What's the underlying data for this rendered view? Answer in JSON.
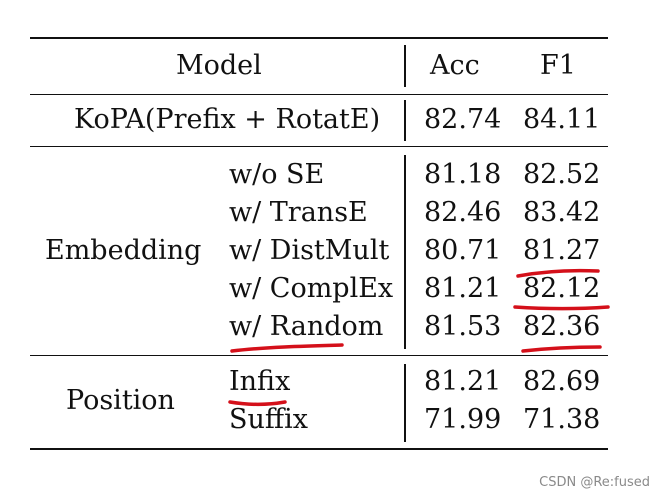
{
  "table": {
    "header": {
      "model": "Model",
      "acc": "Acc",
      "f1": "F1"
    },
    "baseline": {
      "model": "KoPA(Prefix + RotatE)",
      "acc": "82.74",
      "f1": "84.11"
    },
    "groups": [
      {
        "name": "Embedding",
        "rows": [
          {
            "variant": "w/o SE",
            "acc": "81.18",
            "f1": "82.52"
          },
          {
            "variant": "w/ TransE",
            "acc": "82.46",
            "f1": "83.42"
          },
          {
            "variant": "w/ DistMult",
            "acc": "80.71",
            "f1": "81.27"
          },
          {
            "variant": "w/ ComplEx",
            "acc": "81.21",
            "f1": "82.12"
          },
          {
            "variant": "w/ Random",
            "acc": "81.53",
            "f1": "82.36"
          }
        ]
      },
      {
        "name": "Position",
        "rows": [
          {
            "variant": "Infix",
            "acc": "81.21",
            "f1": "82.69"
          },
          {
            "variant": "Suffix",
            "acc": "71.99",
            "f1": "71.38"
          }
        ]
      }
    ]
  },
  "annotations": {
    "pen_color": "#d4101a"
  },
  "watermark": "CSDN @Re:fused"
}
